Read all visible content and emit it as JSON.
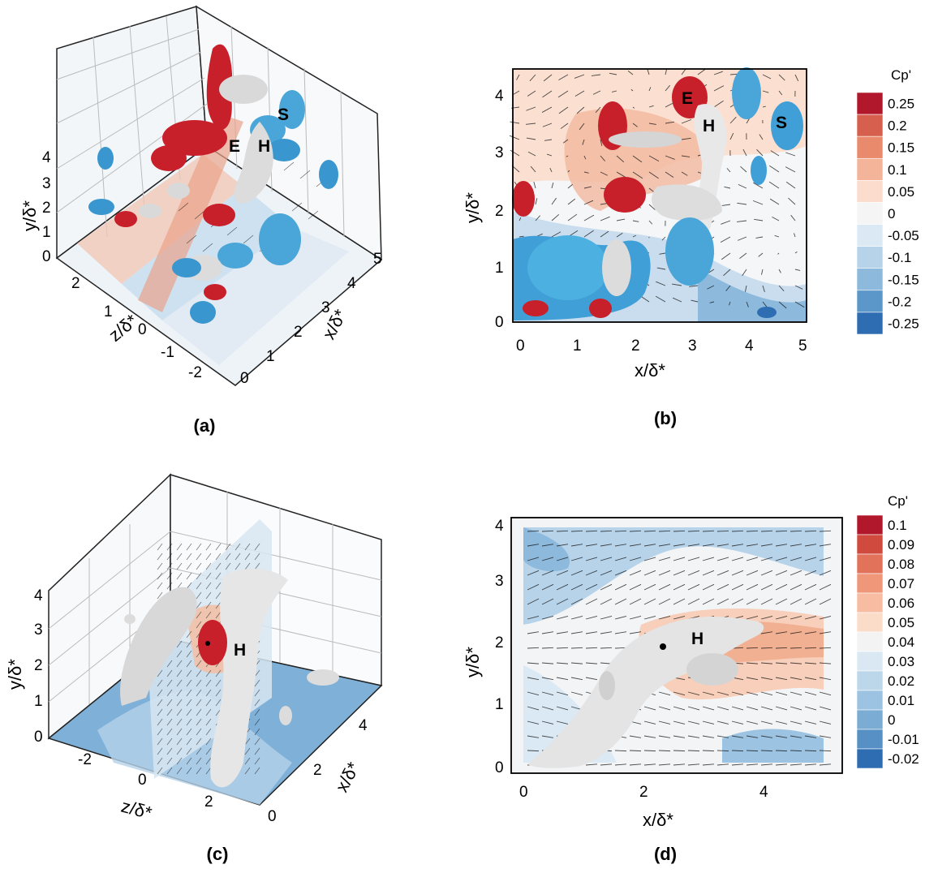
{
  "captions": [
    "(a)",
    "(b)",
    "(c)",
    "(d)"
  ],
  "markers": {
    "E": "E",
    "H": "H",
    "S": "S"
  },
  "axis_labels": {
    "y": "y/δ*",
    "x": "x/δ*",
    "z": "z/δ*"
  },
  "colorbars": [
    {
      "title": "Cp'",
      "levels": [
        "0.25",
        "0.2",
        "0.15",
        "0.1",
        "0.05",
        "0",
        "-0.05",
        "-0.1",
        "-0.15",
        "-0.2",
        "-0.25"
      ],
      "colors": [
        "#b2182b",
        "#d6604d",
        "#e98a6c",
        "#f4b49a",
        "#fbdccd",
        "#f5f5f5",
        "#dbe9f4",
        "#b7d3e9",
        "#8cb9dc",
        "#5b97c8",
        "#2f6db3"
      ]
    },
    {
      "title": "Cp'",
      "levels": [
        "0.1",
        "0.09",
        "0.08",
        "0.07",
        "0.06",
        "0.05",
        "0.04",
        "0.03",
        "0.02",
        "0.01",
        "0",
        "-0.01",
        "-0.02"
      ],
      "colors": [
        "#b2182b",
        "#d04a3e",
        "#e2725a",
        "#f0977a",
        "#f7bca1",
        "#fbdcc9",
        "#f3f3f3",
        "#d9e8f3",
        "#bcd6ea",
        "#9cc3e1",
        "#7aacd4",
        "#5690c5",
        "#2f6db3"
      ]
    }
  ],
  "chart_data": [
    {
      "type": "other",
      "panel": "(a)",
      "axes": {
        "y": {
          "label": "y/δ*",
          "ticks": [
            "0",
            "1",
            "2",
            "3",
            "4"
          ]
        },
        "z": {
          "label": "z/δ*",
          "ticks": [
            "2",
            "1",
            "0",
            "-1",
            "-2"
          ]
        },
        "x": {
          "label": "x/δ*",
          "ticks": [
            "0",
            "1",
            "2",
            "3",
            "4",
            "5"
          ]
        }
      },
      "annotations": [
        "E",
        "H",
        "S"
      ]
    },
    {
      "type": "other",
      "panel": "(b)",
      "axes": {
        "x": {
          "label": "x/δ*",
          "range": [
            0,
            5
          ],
          "ticks": [
            "0",
            "1",
            "2",
            "3",
            "4",
            "5"
          ]
        },
        "y": {
          "label": "y/δ*",
          "range": [
            0,
            4
          ],
          "ticks": [
            "0",
            "1",
            "2",
            "3",
            "4"
          ]
        }
      },
      "annotations": [
        "E",
        "H",
        "S"
      ]
    },
    {
      "type": "other",
      "panel": "(c)",
      "axes": {
        "y": {
          "label": "y/δ*",
          "ticks": [
            "0",
            "1",
            "2",
            "3",
            "4"
          ]
        },
        "z": {
          "label": "z/δ*",
          "ticks": [
            "-2",
            "0",
            "2"
          ]
        },
        "x": {
          "label": "x/δ*",
          "ticks": [
            "0",
            "2",
            "4"
          ]
        }
      },
      "annotations": [
        "H"
      ]
    },
    {
      "type": "other",
      "panel": "(d)",
      "axes": {
        "x": {
          "label": "x/δ*",
          "range": [
            0,
            5
          ],
          "ticks": [
            "0",
            "2",
            "4"
          ]
        },
        "y": {
          "label": "y/δ*",
          "range": [
            0,
            4
          ],
          "ticks": [
            "0",
            "1",
            "2",
            "3",
            "4"
          ]
        }
      },
      "annotations": [
        "H"
      ]
    }
  ]
}
